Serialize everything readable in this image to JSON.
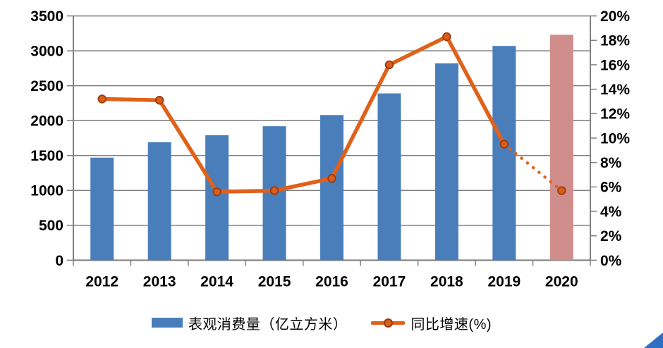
{
  "chart_data": {
    "type": "bar+line combo",
    "title": "",
    "xlabel": "",
    "ylabel_left": "",
    "ylabel_right": "",
    "categories": [
      "2012",
      "2013",
      "2014",
      "2015",
      "2016",
      "2017",
      "2018",
      "2019",
      "2020"
    ],
    "series": [
      {
        "name": "表观消费量（亿立方米）",
        "type": "bar",
        "axis": "left",
        "values": [
          1470,
          1690,
          1790,
          1920,
          2080,
          2390,
          2820,
          3070,
          3230
        ],
        "forecast_index": 8
      },
      {
        "name": "同比增速(%)",
        "type": "line",
        "axis": "right",
        "values": [
          13.2,
          13.1,
          5.6,
          5.7,
          6.7,
          16.0,
          18.3,
          9.5,
          5.7
        ],
        "dotted_from_index": 7
      }
    ],
    "left_axis": {
      "min": 0,
      "max": 3500,
      "step": 500
    },
    "right_axis": {
      "min": 0,
      "max": 20,
      "step": 2,
      "suffix": "%"
    },
    "grid": true,
    "legend_position": "bottom"
  },
  "colors": {
    "bar": "#4a7ebb",
    "bar_forecast": "#cf8d8c",
    "line": "#e0611a",
    "marker_fill": "#d95f1a",
    "marker_stroke": "#9c3a0e",
    "grid": "#7f7f7f",
    "axis": "#7f7f7f",
    "text": "#000000",
    "corner_triangle": "#2e6fc4"
  }
}
